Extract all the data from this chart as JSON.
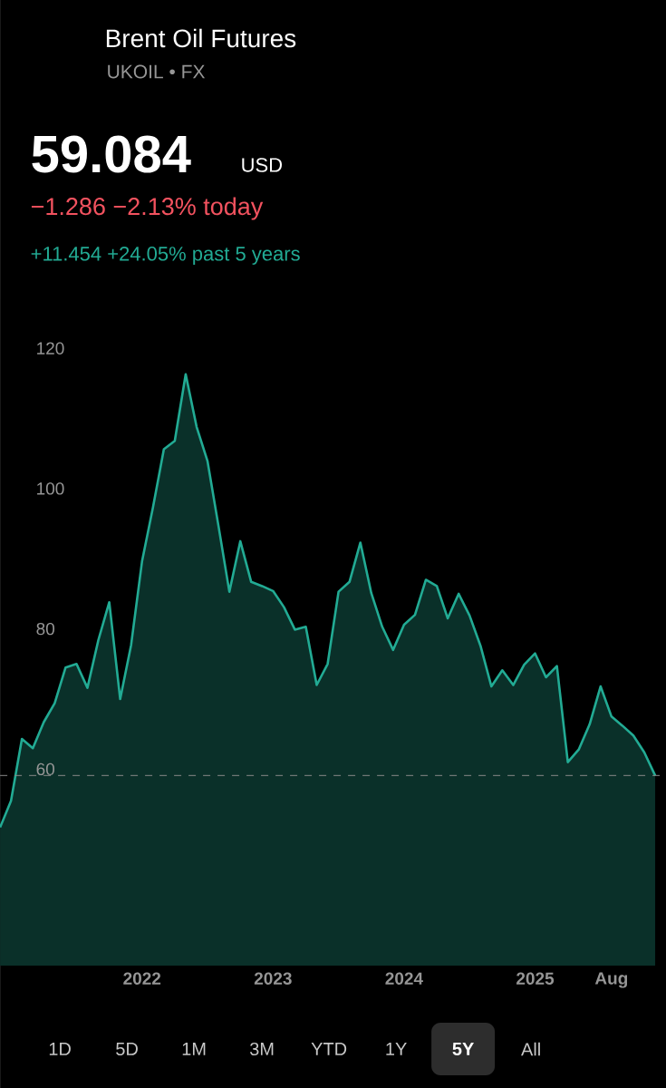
{
  "chart_data": {
    "type": "area",
    "title": "Brent Oil Futures",
    "subtitle": "UKOIL • FX",
    "annotations": [
      "59.084",
      "USD",
      "−1.286 −2.13% today",
      "+11.454 +24.05% past 5 years",
      "1D",
      "5D",
      "1M",
      "3M",
      "YTD",
      "1Y",
      "5Y",
      "All"
    ],
    "x": [
      "2020-12",
      "2021-01",
      "2021-02",
      "2021-03",
      "2021-04",
      "2021-05",
      "2021-06",
      "2021-07",
      "2021-08",
      "2021-09",
      "2021-10",
      "2021-11",
      "2021-12",
      "2022-01",
      "2022-02",
      "2022-03",
      "2022-04",
      "2022-05",
      "2022-06",
      "2022-07",
      "2022-08",
      "2022-09",
      "2022-10",
      "2022-11",
      "2022-12",
      "2023-01",
      "2023-02",
      "2023-03",
      "2023-04",
      "2023-05",
      "2023-06",
      "2023-07",
      "2023-08",
      "2023-09",
      "2023-10",
      "2023-11",
      "2023-12",
      "2024-01",
      "2024-02",
      "2024-03",
      "2024-04",
      "2024-05",
      "2024-06",
      "2024-07",
      "2024-08",
      "2024-09",
      "2024-10",
      "2024-11",
      "2024-12",
      "2025-01",
      "2025-02",
      "2025-03",
      "2025-04",
      "2025-05",
      "2025-06",
      "2025-07",
      "2025-08",
      "2025-09",
      "2025-10",
      "2025-11",
      "2025-12"
    ],
    "values": [
      51.7,
      55.5,
      64.3,
      63.0,
      66.7,
      69.4,
      74.5,
      75.0,
      71.6,
      78.4,
      83.8,
      70.0,
      77.7,
      89.6,
      97.3,
      105.6,
      106.8,
      116.3,
      108.8,
      103.9,
      94.7,
      85.3,
      92.5,
      86.7,
      86.1,
      85.4,
      83.1,
      79.9,
      80.3,
      72.0,
      75.0,
      85.3,
      86.7,
      92.3,
      85.1,
      80.3,
      77.0,
      80.6,
      82.0,
      87.0,
      86.1,
      81.5,
      85.0,
      81.9,
      77.6,
      71.8,
      74.1,
      72.0,
      74.9,
      76.5,
      73.1,
      74.7,
      61.0,
      62.8,
      66.4,
      71.8,
      67.5,
      66.2,
      64.8,
      62.4,
      59.1
    ],
    "color": "#22ab94",
    "xlim": [
      "2020-12",
      "2026-01"
    ],
    "ylim": [
      32,
      127
    ],
    "xticks": [
      "2022",
      "2023",
      "2024",
      "2025",
      {
        "value": "2025-08",
        "label": "Aug"
      }
    ],
    "yticks": [
      60,
      80,
      100,
      120
    ],
    "ref_lines": [
      {
        "axis": "y",
        "value": 59.1,
        "color": "#8a8a8a",
        "line_style": "dashed"
      }
    ],
    "grid": false
  }
}
